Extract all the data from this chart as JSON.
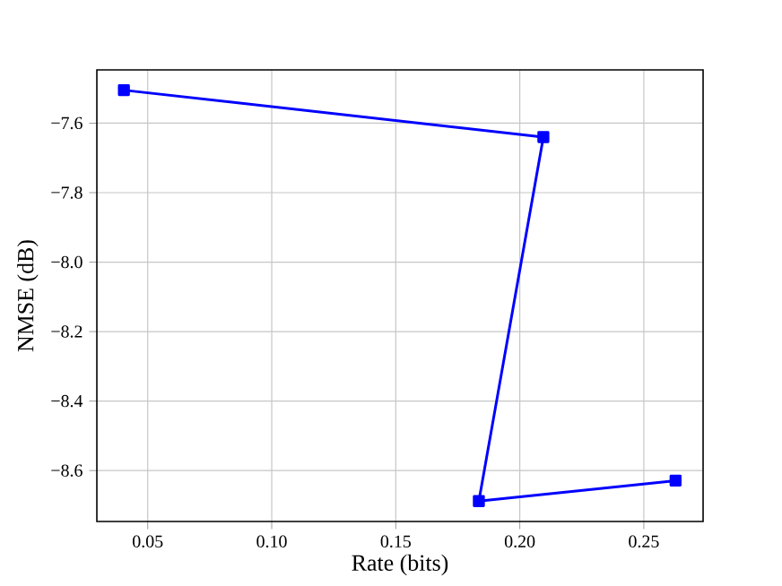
{
  "chart_data": {
    "type": "line",
    "xlabel": "Rate (bits)",
    "ylabel": "NMSE (dB)",
    "series": [
      {
        "color": "#0000ff",
        "x": [
          0.0404,
          0.2095,
          0.1835,
          0.2628
        ],
        "values": [
          -7.505,
          -7.64,
          -8.688,
          -8.629
        ]
      }
    ],
    "xlim": [
      0.0295,
      0.2739
    ],
    "ylim": [
      -8.7466,
      -7.4466
    ],
    "xticks": [
      {
        "value": 0.05,
        "label": "0.05"
      },
      {
        "value": 0.1,
        "label": "0.10"
      },
      {
        "value": 0.15,
        "label": "0.15"
      },
      {
        "value": 0.2,
        "label": "0.20"
      },
      {
        "value": 0.25,
        "label": "0.25"
      }
    ],
    "yticks": [
      {
        "value": -8.6,
        "label": "−8.6"
      },
      {
        "value": -8.4,
        "label": "−8.4"
      },
      {
        "value": -8.2,
        "label": "−8.2"
      },
      {
        "value": -8.0,
        "label": "−8.0"
      },
      {
        "value": -7.8,
        "label": "−7.8"
      },
      {
        "value": -7.6,
        "label": "−7.6"
      }
    ],
    "grid": true,
    "marker": "square",
    "line_style": "solid"
  }
}
